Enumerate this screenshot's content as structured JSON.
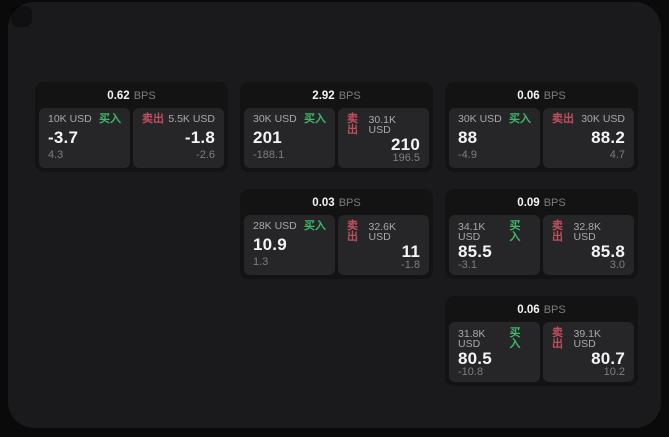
{
  "colors": {
    "page_bg": "#0a0a0b",
    "container_bg": "#1a1a1c",
    "card_bg": "#131314",
    "panel_bg": "#262628",
    "text_primary": "#f4f4f6",
    "text_secondary": "#a9a9ad",
    "text_muted": "#7d7d82",
    "buy_green": "#3fb768",
    "sell_red": "#c04f5e"
  },
  "labels": {
    "bps_unit": "BPS",
    "buy": "买入",
    "sell": "卖出"
  },
  "cards": [
    {
      "bps": "0.62",
      "col": 0,
      "row": 0,
      "buy": {
        "size": "10K USD",
        "price": "-3.7",
        "change": "4.3"
      },
      "sell": {
        "size": "5.5K USD",
        "price": "-1.8",
        "change": "-2.6"
      }
    },
    {
      "bps": "2.92",
      "col": 1,
      "row": 0,
      "buy": {
        "size": "30K USD",
        "price": "201",
        "change": "-188.1"
      },
      "sell": {
        "size": "30.1K USD",
        "price": "210",
        "change": "196.5"
      }
    },
    {
      "bps": "0.06",
      "col": 2,
      "row": 0,
      "buy": {
        "size": "30K USD",
        "price": "88",
        "change": "-4.9"
      },
      "sell": {
        "size": "30K USD",
        "price": "88.2",
        "change": "4.7"
      }
    },
    {
      "bps": "0.03",
      "col": 1,
      "row": 1,
      "buy": {
        "size": "28K USD",
        "price": "10.9",
        "change": "1.3"
      },
      "sell": {
        "size": "32.6K USD",
        "price": "11",
        "change": "-1.8"
      }
    },
    {
      "bps": "0.09",
      "col": 2,
      "row": 1,
      "buy": {
        "size": "34.1K USD",
        "price": "85.5",
        "change": "-3.1"
      },
      "sell": {
        "size": "32.8K USD",
        "price": "85.8",
        "change": "3.0"
      }
    },
    {
      "bps": "0.06",
      "col": 2,
      "row": 2,
      "buy": {
        "size": "31.8K USD",
        "price": "80.5",
        "change": "-10.8"
      },
      "sell": {
        "size": "39.1K USD",
        "price": "80.7",
        "change": "10.2"
      }
    }
  ]
}
